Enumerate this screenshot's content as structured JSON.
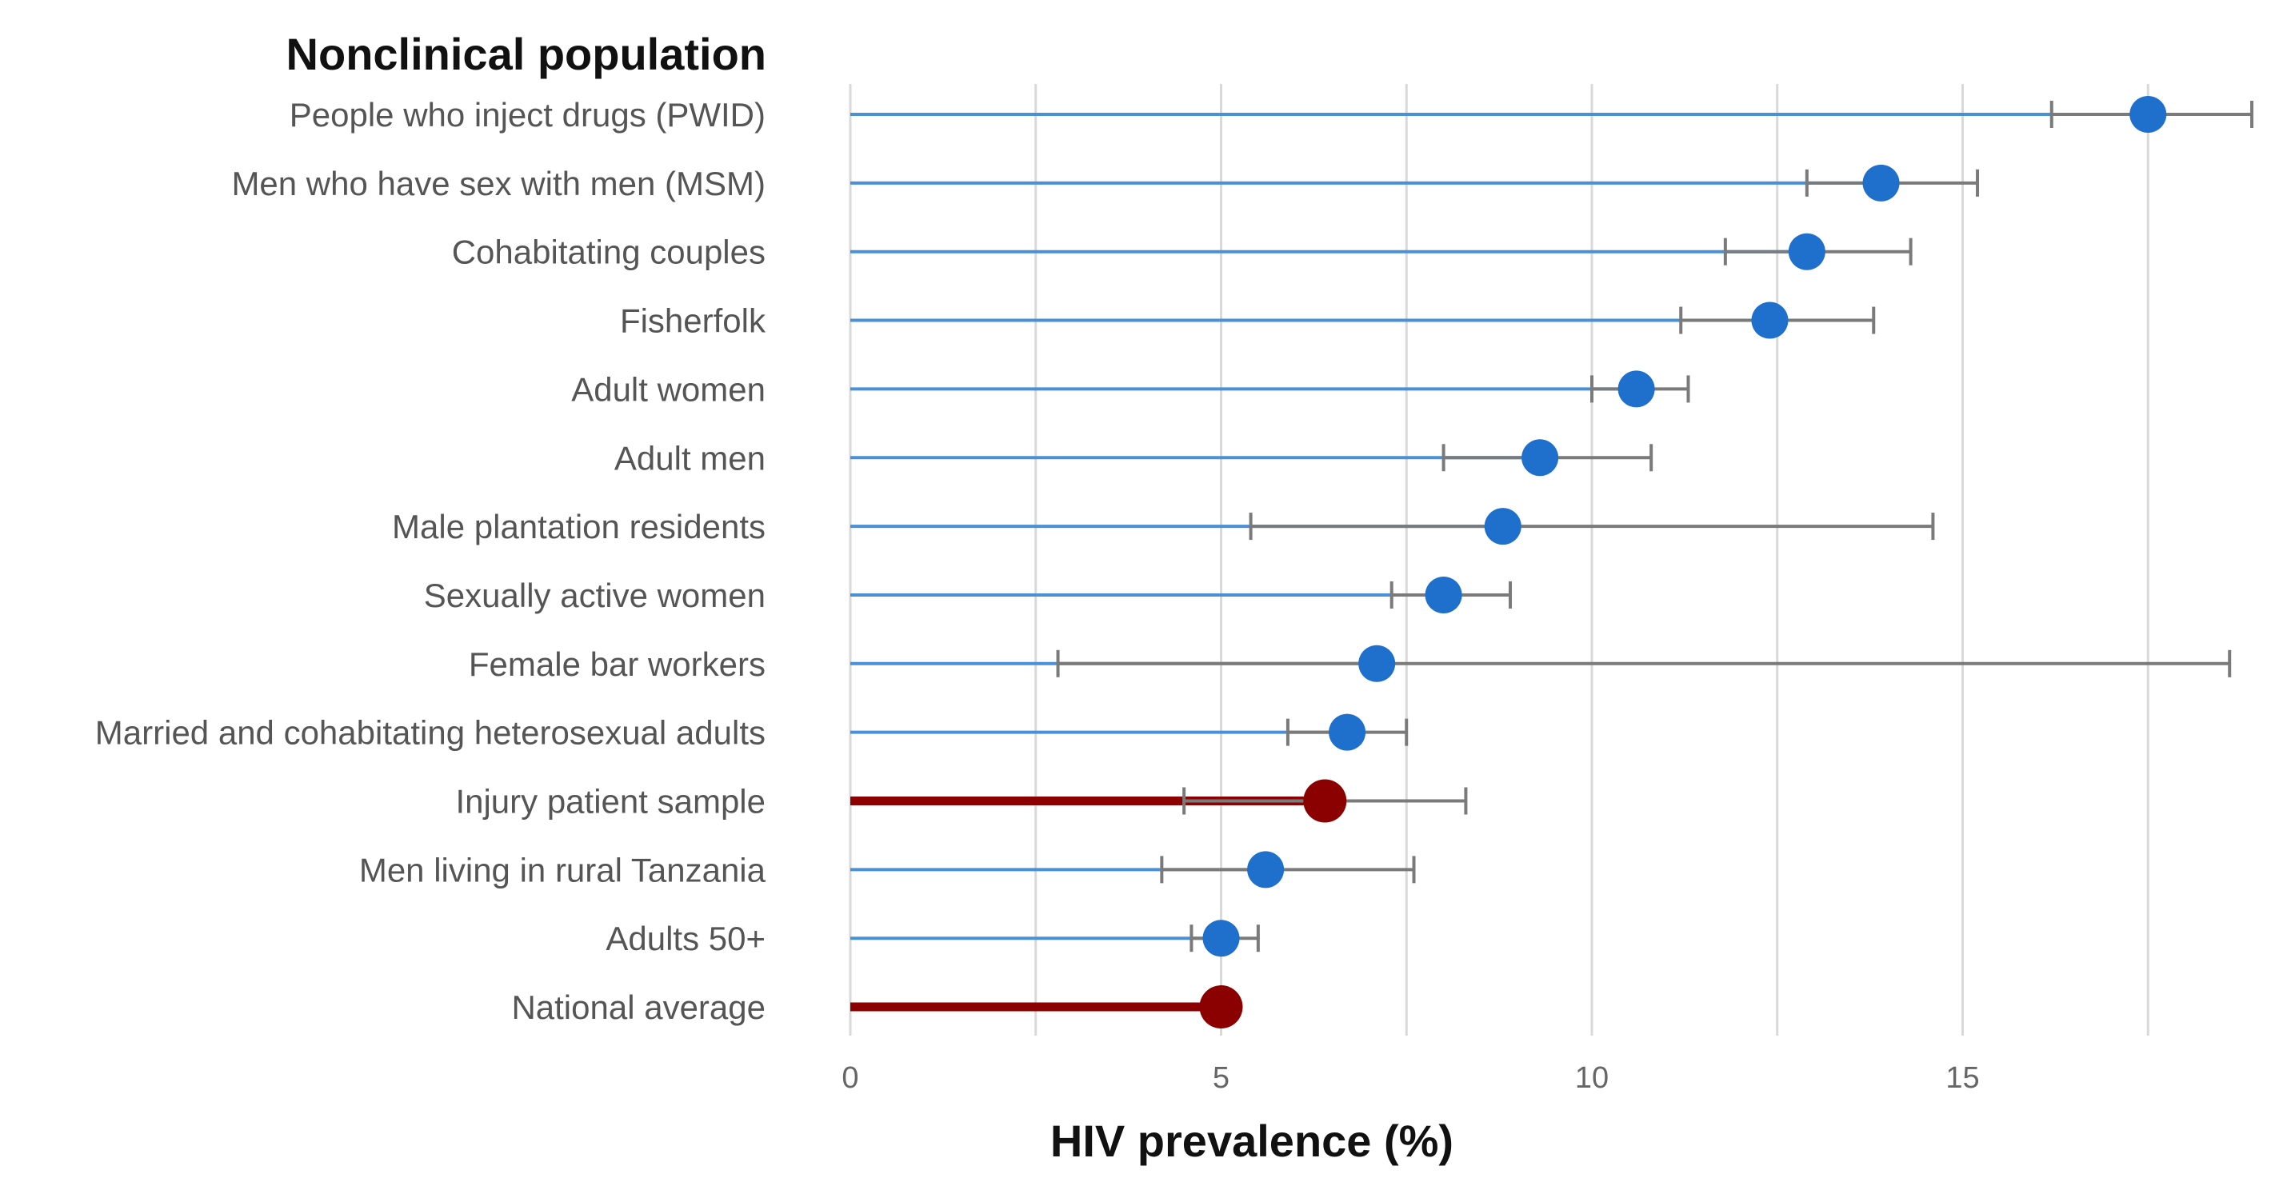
{
  "chart_data": {
    "type": "dot",
    "title": "Nonclinical population",
    "xlabel": "HIV prevalence (%)",
    "xlim": [
      0,
      19
    ],
    "xticks": [
      0,
      5,
      10,
      15
    ],
    "minor_grid_step": 2.5,
    "categories": [
      "People who inject drugs (PWID)",
      "Men who have sex with men (MSM)",
      "Cohabitating couples",
      "Fisherfolk",
      "Adult women",
      "Adult men",
      "Male plantation residents",
      "Sexually active women",
      "Female bar workers",
      "Married and cohabitating heterosexual adults",
      "Injury patient sample",
      "Men living in rural Tanzania",
      "Adults 50+",
      "National average"
    ],
    "values": [
      17.5,
      13.9,
      12.9,
      12.4,
      10.6,
      9.3,
      8.8,
      8.0,
      7.1,
      6.7,
      6.4,
      5.6,
      5.0,
      5.0
    ],
    "ci_lower": [
      16.2,
      12.9,
      11.8,
      11.2,
      10.0,
      8.0,
      5.4,
      7.3,
      2.8,
      5.9,
      4.5,
      4.2,
      4.6,
      null
    ],
    "ci_upper": [
      18.9,
      15.2,
      14.3,
      13.8,
      11.3,
      10.8,
      14.6,
      8.9,
      18.6,
      7.5,
      8.3,
      7.6,
      5.5,
      null
    ],
    "highlighted": [
      false,
      false,
      false,
      false,
      false,
      false,
      false,
      false,
      false,
      false,
      true,
      false,
      false,
      true
    ],
    "colors": {
      "point": "#1f6fcc",
      "line": "#4a90d9",
      "highlight": "#8b0000",
      "error_bar": "#7a7a7a",
      "grid": "#d9d9d9"
    }
  }
}
